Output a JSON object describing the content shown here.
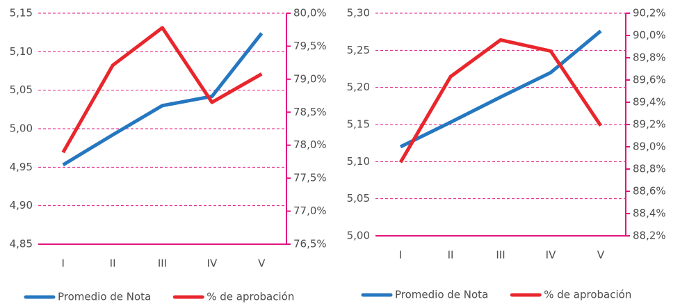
{
  "chart_data": [
    {
      "type": "line",
      "categories": [
        "I",
        "II",
        "III",
        "IV",
        "V"
      ],
      "series": [
        {
          "name": "Promedio de Nota",
          "color": "#2577c0",
          "values": [
            4.953,
            4.992,
            5.03,
            5.042,
            5.124
          ]
        },
        {
          "name": "% de aprobación",
          "color": "#e8262c",
          "axis": "y2",
          "values": [
            77.89,
            79.21,
            79.78,
            78.65,
            79.08
          ]
        }
      ],
      "ylim": [
        4.85,
        5.15
      ],
      "yticks": [
        {
          "value": 4.85,
          "label": "4,85"
        },
        {
          "value": 4.9,
          "label": "4,90"
        },
        {
          "value": 4.95,
          "label": "4,95"
        },
        {
          "value": 5.0,
          "label": "5,00"
        },
        {
          "value": 5.05,
          "label": "5,05"
        },
        {
          "value": 5.1,
          "label": "5,10"
        },
        {
          "value": 5.15,
          "label": "5,15"
        }
      ],
      "y2lim": [
        76.5,
        80.0
      ],
      "y2ticks": [
        {
          "value": 76.5,
          "label": "76,5%"
        },
        {
          "value": 77.0,
          "label": "77,0%"
        },
        {
          "value": 77.5,
          "label": "77,5%"
        },
        {
          "value": 78.0,
          "label": "78,0%"
        },
        {
          "value": 78.5,
          "label": "78,5%"
        },
        {
          "value": 79.0,
          "label": "79,0%"
        },
        {
          "value": 79.5,
          "label": "79,5%"
        },
        {
          "value": 80.0,
          "label": "80,0%"
        }
      ],
      "grid": true,
      "legend": "bottom"
    },
    {
      "type": "line",
      "categories": [
        "I",
        "II",
        "III",
        "IV",
        "V"
      ],
      "series": [
        {
          "name": "Promedio de Nota",
          "color": "#2577c0",
          "values": [
            5.12,
            5.153,
            5.187,
            5.22,
            5.276
          ]
        },
        {
          "name": "% de aprobación",
          "color": "#e8262c",
          "axis": "y2",
          "values": [
            88.86,
            89.63,
            89.96,
            89.86,
            89.19
          ]
        }
      ],
      "ylim": [
        5.0,
        5.3
      ],
      "yticks": [
        {
          "value": 5.0,
          "label": "5,00"
        },
        {
          "value": 5.05,
          "label": "5,05"
        },
        {
          "value": 5.1,
          "label": "5,10"
        },
        {
          "value": 5.15,
          "label": "5,15"
        },
        {
          "value": 5.2,
          "label": "5,20"
        },
        {
          "value": 5.25,
          "label": "5,25"
        },
        {
          "value": 5.3,
          "label": "5,30"
        }
      ],
      "y2lim": [
        88.2,
        90.2
      ],
      "y2ticks": [
        {
          "value": 88.2,
          "label": "88,2%"
        },
        {
          "value": 88.4,
          "label": "88,4%"
        },
        {
          "value": 88.6,
          "label": "88,6%"
        },
        {
          "value": 88.8,
          "label": "88,8%"
        },
        {
          "value": 89.0,
          "label": "89,0%"
        },
        {
          "value": 89.2,
          "label": "89,2%"
        },
        {
          "value": 89.4,
          "label": "89,4%"
        },
        {
          "value": 89.6,
          "label": "89,6%"
        },
        {
          "value": 89.8,
          "label": "89,8%"
        },
        {
          "value": 90.0,
          "label": "90,0%"
        },
        {
          "value": 90.2,
          "label": "90,2%"
        }
      ],
      "grid": true,
      "legend": "bottom"
    }
  ]
}
